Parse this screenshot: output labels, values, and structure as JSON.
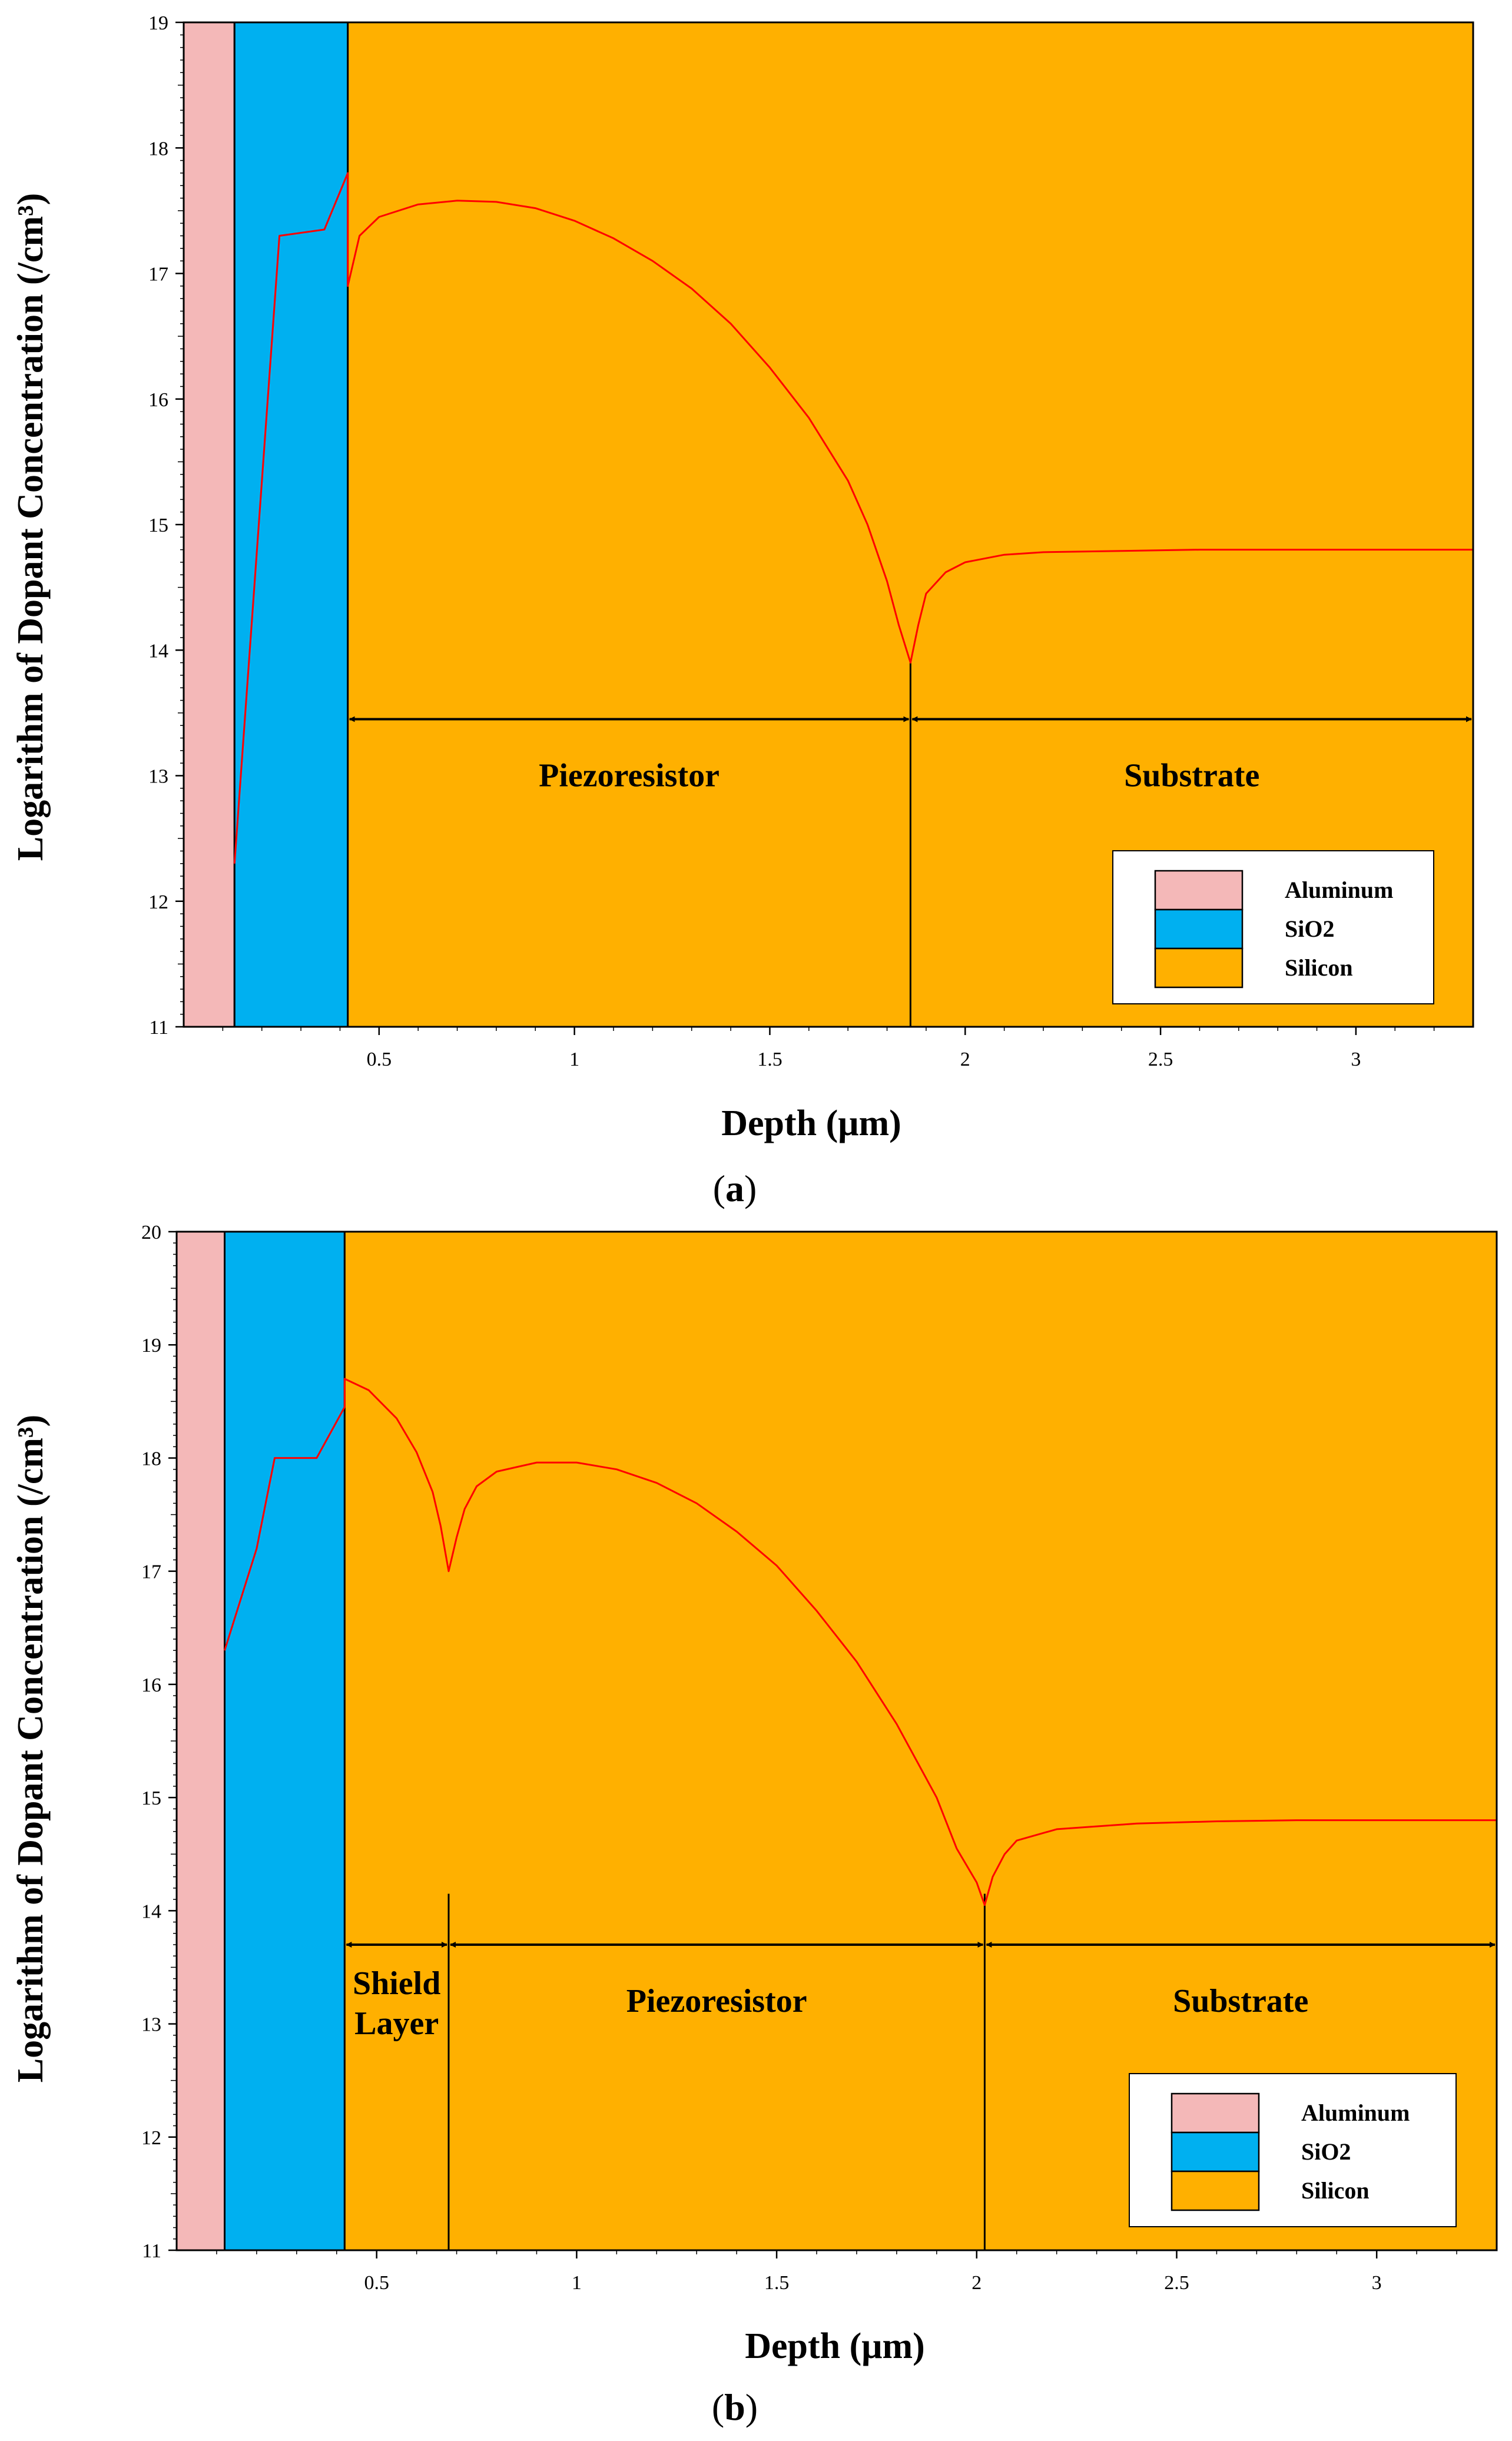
{
  "colors": {
    "aluminum": "#f4b8b8",
    "sio2": "#00b0f0",
    "silicon": "#ffb000",
    "curve": "#ff0000"
  },
  "chart_data": [
    {
      "type": "line",
      "panel": "a",
      "caption_open": "(",
      "caption_letter": "a",
      "caption_close": ")",
      "xlabel": "Depth (μm)",
      "ylabel": "Logarithm of Dopant Concentration (/cm³)",
      "xlim": [
        0.0,
        3.3
      ],
      "ylim": [
        11,
        19
      ],
      "xticks": [
        0.5,
        1,
        1.5,
        2,
        2.5,
        3
      ],
      "xtick_labels": [
        "0.5",
        "1",
        "1.5",
        "2",
        "2.5",
        "3"
      ],
      "yticks": [
        11,
        12,
        13,
        14,
        15,
        16,
        17,
        18,
        19
      ],
      "ytick_labels": [
        "11",
        "12",
        "13",
        "14",
        "15",
        "16",
        "17",
        "18",
        "19"
      ],
      "layers": [
        {
          "name": "Aluminum",
          "x0": 0.0,
          "x1": 0.13
        },
        {
          "name": "SiO2",
          "x0": 0.13,
          "x1": 0.42
        },
        {
          "name": "Silicon",
          "x0": 0.42,
          "x1": 3.3
        }
      ],
      "legend": [
        "Aluminum",
        "SiO2",
        "Silicon"
      ],
      "junctions": [
        1.86
      ],
      "regions": [
        {
          "name": "Piezoresistor",
          "x0": 0.42,
          "x1": 1.86
        },
        {
          "name": "Substrate",
          "x0": 1.86,
          "x1": 3.3
        }
      ],
      "arrow_y": 13.45,
      "label_y": 13.0,
      "series": [
        {
          "name": "Dopant concentration",
          "x": [
            0.13,
            0.245,
            0.36,
            0.42,
            0.42,
            0.45,
            0.5,
            0.6,
            0.7,
            0.8,
            0.9,
            1.0,
            1.1,
            1.2,
            1.3,
            1.4,
            1.5,
            1.6,
            1.7,
            1.75,
            1.8,
            1.83,
            1.86,
            1.88,
            1.9,
            1.95,
            2.0,
            2.1,
            2.2,
            2.4,
            2.6,
            2.8,
            3.0,
            3.3
          ],
          "y": [
            12.3,
            17.3,
            17.35,
            17.8,
            16.9,
            17.3,
            17.45,
            17.55,
            17.58,
            17.57,
            17.52,
            17.42,
            17.28,
            17.1,
            16.88,
            16.6,
            16.25,
            15.85,
            15.35,
            15.0,
            14.55,
            14.2,
            13.9,
            14.2,
            14.45,
            14.62,
            14.7,
            14.76,
            14.78,
            14.79,
            14.8,
            14.8,
            14.8,
            14.8
          ]
        }
      ]
    },
    {
      "type": "line",
      "panel": "b",
      "caption_open": "(",
      "caption_letter": "b",
      "caption_close": ")",
      "xlabel": "Depth (μm)",
      "ylabel": "Logarithm of Dopant Concentration (/cm³)",
      "xlim": [
        0.0,
        3.3
      ],
      "ylim": [
        11,
        20
      ],
      "xticks": [
        0.5,
        1,
        1.5,
        2,
        2.5,
        3
      ],
      "xtick_labels": [
        "0.5",
        "1",
        "1.5",
        "2",
        "2.5",
        "3"
      ],
      "yticks": [
        11,
        12,
        13,
        14,
        15,
        16,
        17,
        18,
        19,
        20
      ],
      "ytick_labels": [
        "11",
        "12",
        "13",
        "14",
        "15",
        "16",
        "17",
        "18",
        "19",
        "20"
      ],
      "layers": [
        {
          "name": "Aluminum",
          "x0": 0.0,
          "x1": 0.12
        },
        {
          "name": "SiO2",
          "x0": 0.12,
          "x1": 0.42
        },
        {
          "name": "Silicon",
          "x0": 0.42,
          "x1": 3.3
        }
      ],
      "legend": [
        "Aluminum",
        "SiO2",
        "Silicon"
      ],
      "junctions": [
        0.68,
        2.02
      ],
      "regions": [
        {
          "name": "Shield Layer",
          "x0": 0.42,
          "x1": 0.68,
          "lines": [
            "Shield",
            "Layer"
          ]
        },
        {
          "name": "Piezoresistor",
          "x0": 0.68,
          "x1": 2.02
        },
        {
          "name": "Substrate",
          "x0": 2.02,
          "x1": 3.3
        }
      ],
      "arrow_y": 13.7,
      "label_y": 13.2,
      "series": [
        {
          "name": "Dopant concentration",
          "x": [
            0.12,
            0.2,
            0.245,
            0.35,
            0.42,
            0.42,
            0.48,
            0.55,
            0.6,
            0.64,
            0.66,
            0.68,
            0.7,
            0.72,
            0.75,
            0.8,
            0.9,
            1.0,
            1.1,
            1.2,
            1.3,
            1.4,
            1.5,
            1.6,
            1.7,
            1.8,
            1.9,
            1.95,
            2.0,
            2.02,
            2.04,
            2.07,
            2.1,
            2.2,
            2.4,
            2.6,
            2.8,
            3.0,
            3.3
          ],
          "y": [
            16.3,
            17.2,
            18.0,
            18.0,
            18.45,
            18.7,
            18.6,
            18.35,
            18.05,
            17.7,
            17.4,
            17.0,
            17.3,
            17.55,
            17.75,
            17.88,
            17.96,
            17.96,
            17.9,
            17.78,
            17.6,
            17.35,
            17.05,
            16.65,
            16.2,
            15.65,
            15.0,
            14.55,
            14.25,
            14.05,
            14.3,
            14.5,
            14.62,
            14.72,
            14.77,
            14.79,
            14.8,
            14.8,
            14.8
          ]
        }
      ]
    }
  ]
}
